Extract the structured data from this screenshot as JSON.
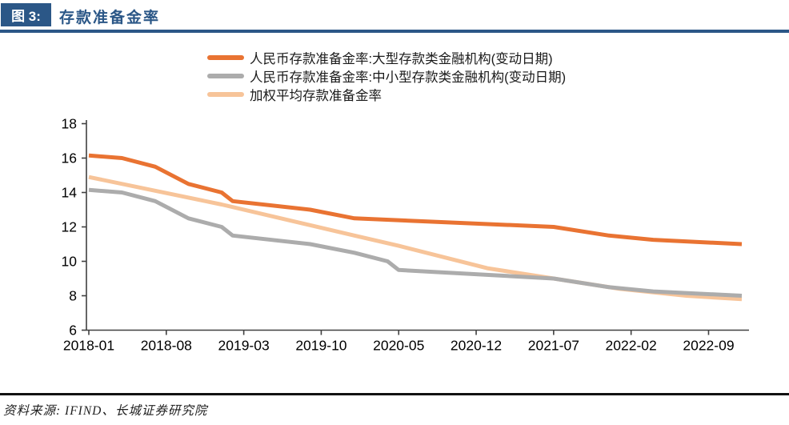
{
  "header": {
    "fig_label": "图 3:",
    "title": "存款准备金率",
    "accent_color": "#2B5787"
  },
  "legend": [
    {
      "label": "人民币存款准备金率:大型存款类金融机构(变动日期)",
      "color": "#E97332"
    },
    {
      "label": "人民币存款准备金率:中小型存款类金融机构(变动日期)",
      "color": "#ACACAC"
    },
    {
      "label": "加权平均存款准备金率",
      "color": "#F7C499"
    }
  ],
  "footer": {
    "source": "资料来源: IFIND、长城证券研究院"
  },
  "chart_data": {
    "type": "line",
    "title": "存款准备金率",
    "xlabel": "",
    "ylabel": "",
    "ylim": [
      6,
      18
    ],
    "y_ticks": [
      18,
      16,
      14,
      12,
      10,
      8,
      6
    ],
    "x_ticks": [
      {
        "label": "2018-01",
        "month": 0
      },
      {
        "label": "2018-08",
        "month": 7
      },
      {
        "label": "2019-03",
        "month": 14
      },
      {
        "label": "2019-10",
        "month": 21
      },
      {
        "label": "2020-05",
        "month": 28
      },
      {
        "label": "2020-12",
        "month": 35
      },
      {
        "label": "2021-07",
        "month": 42
      },
      {
        "label": "2022-02",
        "month": 49
      },
      {
        "label": "2022-09",
        "month": 56
      }
    ],
    "grid": false,
    "legend_position": "top",
    "axis_color": "#404040",
    "series": [
      {
        "name": "人民币存款准备金率:大型存款类金融机构(变动日期)",
        "color": "#E97332",
        "points": [
          [
            "2018-01",
            16.15
          ],
          [
            "2018-04",
            16.0
          ],
          [
            "2018-07",
            15.5
          ],
          [
            "2018-10",
            14.5
          ],
          [
            "2019-01",
            14.0
          ],
          [
            "2019-02",
            13.5
          ],
          [
            "2019-09",
            13.0
          ],
          [
            "2020-01",
            12.5
          ],
          [
            "2021-07",
            12.0
          ],
          [
            "2021-12",
            11.5
          ],
          [
            "2022-04",
            11.25
          ],
          [
            "2022-12",
            11.0
          ]
        ]
      },
      {
        "name": "人民币存款准备金率:中小型存款类金融机构(变动日期)",
        "color": "#ACACAC",
        "points": [
          [
            "2018-01",
            14.15
          ],
          [
            "2018-04",
            14.0
          ],
          [
            "2018-07",
            13.5
          ],
          [
            "2018-10",
            12.5
          ],
          [
            "2019-01",
            12.0
          ],
          [
            "2019-02",
            11.5
          ],
          [
            "2019-09",
            11.0
          ],
          [
            "2020-01",
            10.5
          ],
          [
            "2020-04",
            10.0
          ],
          [
            "2020-05",
            9.5
          ],
          [
            "2021-07",
            9.0
          ],
          [
            "2021-12",
            8.5
          ],
          [
            "2022-04",
            8.25
          ],
          [
            "2022-12",
            8.0
          ]
        ]
      },
      {
        "name": "加权平均存款准备金率",
        "color": "#F7C499",
        "points": [
          [
            "2018-01",
            14.9
          ],
          [
            "2019-01",
            13.3
          ],
          [
            "2020-01",
            11.5
          ],
          [
            "2020-05",
            10.9
          ],
          [
            "2021-01",
            9.6
          ],
          [
            "2021-07",
            9.0
          ],
          [
            "2022-01",
            8.4
          ],
          [
            "2022-07",
            8.0
          ],
          [
            "2022-12",
            7.8
          ]
        ]
      }
    ]
  }
}
